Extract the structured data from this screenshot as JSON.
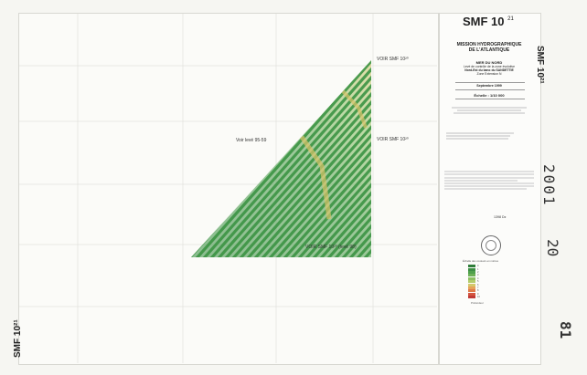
{
  "sheet": {
    "title_main": "SMF 10",
    "title_sup": "21",
    "vertical_right": "SMF 10²¹",
    "vertical_left": "SMF 10²¹",
    "stamp_year": "2001",
    "stamp_num": "20",
    "stamp_sheet": "81"
  },
  "panel": {
    "org_line1": "MISSION HYDROGRAPHIQUE",
    "org_line2": "DE L'ATLANTIQUE",
    "region": "MER DU NORD",
    "subtitle1": "Levé de contrôle de la zone évolutive",
    "subtitle2": "Nord-Est du banc du SANDETTIE",
    "subtitle3": "Zone Extension N",
    "date": "Septembre 1999",
    "scale": "Échelle : 1/10 000",
    "ref_code": "1398 Dz",
    "legend_title": "Échelle des couleurs en mètres",
    "legend_footer": "Profondeur"
  },
  "map": {
    "label_top": "VOIR SMF 10²⁰",
    "label_mid_right": "VOIR SMF 10²⁰",
    "label_left": "Voir levé 95-59",
    "label_bottom": "VOIR SMF 10²⁰ (levé 98)"
  },
  "legend_colors": [
    "#2f7d3a",
    "#3c8e43",
    "#4fa04c",
    "#6bb055",
    "#8cc063",
    "#b2cc6a",
    "#d5c86a",
    "#e6a35a",
    "#e07b4a",
    "#d4553f",
    "#c03a36"
  ],
  "legend_values": [
    "0",
    "1",
    "2",
    "3",
    "4",
    "5",
    "6",
    "7",
    "8",
    "9",
    "10"
  ]
}
